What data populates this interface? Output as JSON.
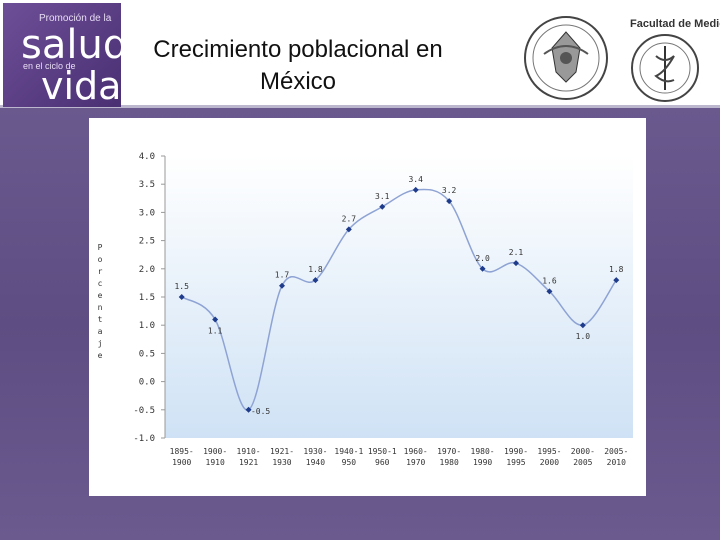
{
  "header": {
    "logo": {
      "line1": "Promoción de la",
      "big1": "salud",
      "line2": "en el ciclo de",
      "big2": "vida"
    },
    "title_line1": "Crecimiento poblacional en",
    "title_line2": "México",
    "faculty_label": "Facultad de Medicina"
  },
  "chart_data": {
    "type": "line",
    "title": "",
    "xlabel": "",
    "ylabel": "Porcentaje",
    "ylim": [
      -1.0,
      4.0
    ],
    "yticks": [
      "4.0",
      "3.5",
      "3.0",
      "2.5",
      "2.0",
      "1.5",
      "1.0",
      "0.5",
      "0.0",
      "-0.5",
      "-1.0"
    ],
    "grid": false,
    "categories": [
      [
        "1895-",
        "1900"
      ],
      [
        "1900-",
        "1910"
      ],
      [
        "1910-",
        "1921"
      ],
      [
        "1921-",
        "1930"
      ],
      [
        "1930-",
        "1940"
      ],
      [
        "1940-1",
        "950"
      ],
      [
        "1950-1",
        "960"
      ],
      [
        "1960-",
        "1970"
      ],
      [
        "1970-",
        "1980"
      ],
      [
        "1980-",
        "1990"
      ],
      [
        "1990-",
        "1995"
      ],
      [
        "1995-",
        "2000"
      ],
      [
        "2000-",
        "2005"
      ],
      [
        "2005-",
        "2010"
      ]
    ],
    "values": [
      1.5,
      1.1,
      -0.5,
      1.7,
      1.8,
      2.7,
      3.1,
      3.4,
      3.2,
      2.0,
      2.1,
      1.6,
      1.0,
      1.8
    ],
    "labels": [
      "1.5",
      "1.1",
      "-0.5",
      "1.7",
      "1.8",
      "2.7",
      "3.1",
      "3.4",
      "3.2",
      "2.0",
      "2.1",
      "1.6",
      "1.0",
      "1.8"
    ],
    "line_color": "#8ea3d4",
    "marker_color": "#1f3c8c",
    "plot_background_top": "#ffffff",
    "plot_background_bottom": "#cfe2f5"
  }
}
